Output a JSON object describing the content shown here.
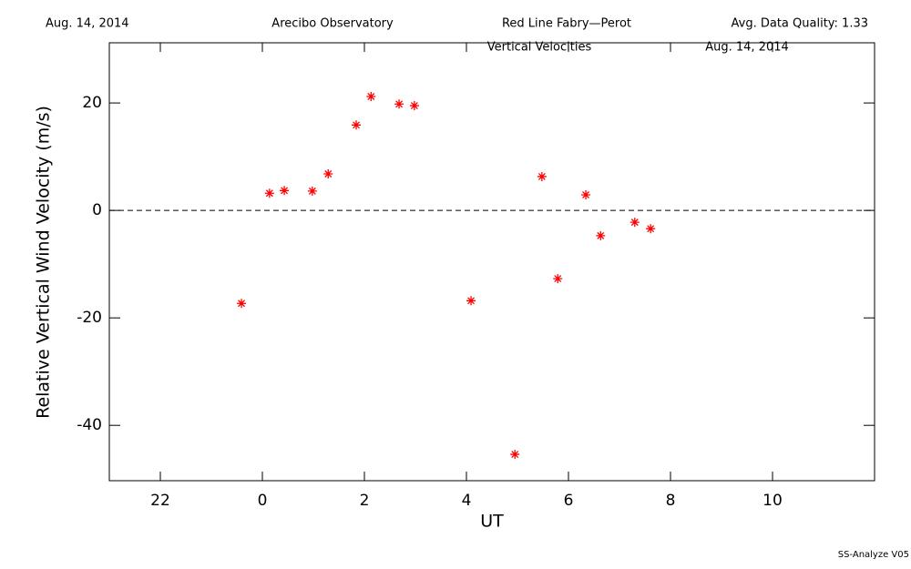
{
  "chart_data": {
    "type": "scatter",
    "header": [
      "Aug. 14, 2014",
      "Arecibo Observatory",
      "Red Line Fabry—Perot",
      "Avg. Data Quality: 1.33"
    ],
    "title": "Vertical Velocities",
    "date": "Aug. 14, 2014",
    "footer": "SS-Analyze V05",
    "x_label": "UT",
    "y_label": "Relative Vertical Wind Velocity (m/s)",
    "xlim": [
      -3,
      12
    ],
    "xticks": [
      {
        "value": -2,
        "label": "22"
      },
      0,
      2,
      4,
      6,
      8,
      10
    ],
    "ylim": [
      -50.3,
      31.2
    ],
    "yticks": [
      -40,
      -20,
      0,
      20
    ],
    "reference_line": 0,
    "color": "#ff0000",
    "x": [
      -0.41,
      0.14,
      0.43,
      0.98,
      1.29,
      1.84,
      2.13,
      2.68,
      2.98,
      4.09,
      4.95,
      5.48,
      5.79,
      6.34,
      6.63,
      7.3,
      7.61
    ],
    "values": [
      -17.3,
      3.2,
      3.7,
      3.6,
      6.8,
      15.9,
      21.2,
      19.8,
      19.5,
      -16.8,
      -45.4,
      6.3,
      -12.7,
      2.9,
      -4.7,
      -2.2,
      -3.4
    ]
  }
}
